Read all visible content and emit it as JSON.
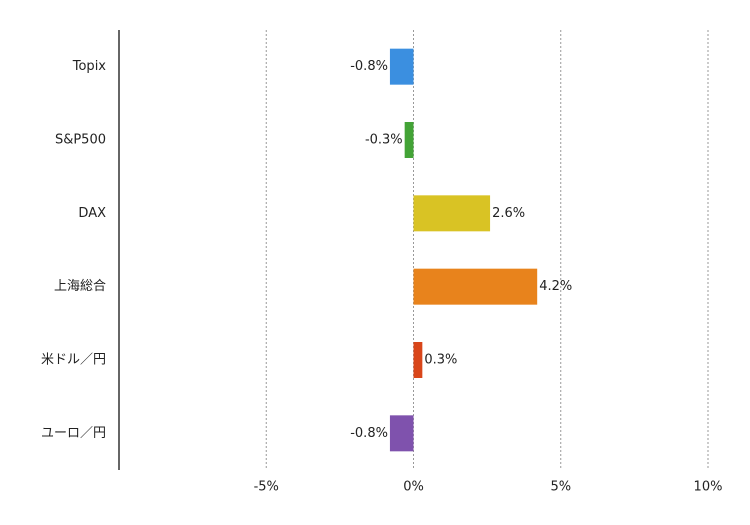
{
  "chart_data": {
    "type": "bar",
    "orientation": "horizontal",
    "categories": [
      "Topix",
      "S&P500",
      "DAX",
      "上海総合",
      "米ドル／円",
      "ユーロ／円"
    ],
    "values": [
      -0.8,
      -0.3,
      2.6,
      4.2,
      0.3,
      -0.8
    ],
    "value_labels": [
      "-0.8%",
      "-0.3%",
      "2.6%",
      "4.2%",
      "0.3%",
      "-0.8%"
    ],
    "colors": [
      "#3b8fe0",
      "#43a336",
      "#d9c324",
      "#e8831c",
      "#d9461a",
      "#7f52ad"
    ],
    "xlim": [
      -10,
      10
    ],
    "xticks": [
      {
        "value": -5,
        "label": "-5%"
      },
      {
        "value": 0,
        "label": "0%"
      },
      {
        "value": 5,
        "label": "5%"
      },
      {
        "value": 10,
        "label": "10%"
      }
    ],
    "grid": true
  }
}
